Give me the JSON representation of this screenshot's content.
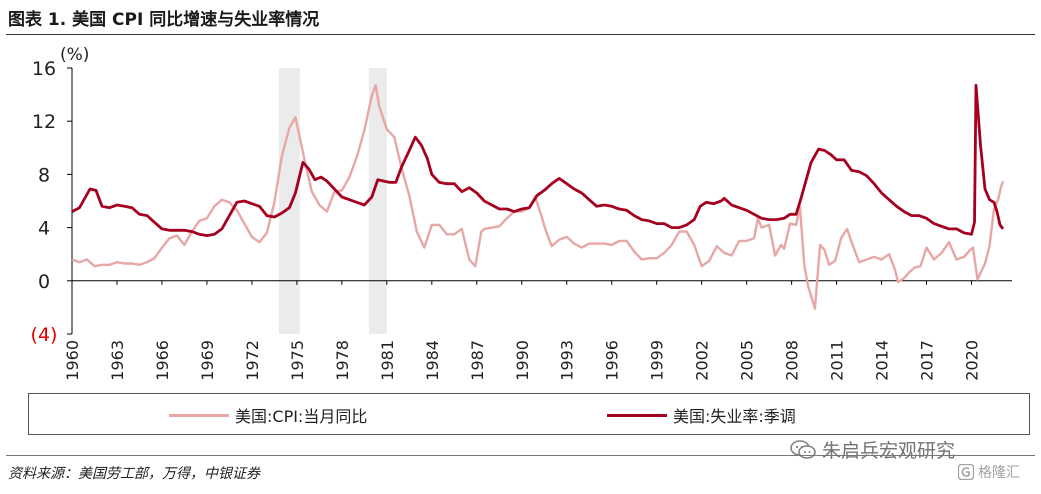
{
  "figure": {
    "title": "图表 1. 美国 CPI 同比增速与失业率情况",
    "source": "资料来源：美国劳工部，万得，中银证券"
  },
  "watermarks": {
    "account": "朱启兵宏观研究",
    "brand": "格隆汇"
  },
  "chart_data": {
    "type": "line",
    "y_unit_label": "(%)",
    "ylim": [
      -4,
      16
    ],
    "yticks": [
      16,
      12,
      8,
      4,
      0,
      -4
    ],
    "ytick_labels": [
      "16",
      "12",
      "8",
      "4",
      "0",
      "(4)"
    ],
    "negative_tick_color": "#e00000",
    "xlim": [
      1960,
      2022.7
    ],
    "xticks": [
      1960,
      1963,
      1966,
      1969,
      1972,
      1975,
      1978,
      1981,
      1984,
      1987,
      1990,
      1993,
      1996,
      1999,
      2002,
      2005,
      2008,
      2011,
      2014,
      2017,
      2020
    ],
    "xtick_labels": [
      "1960",
      "1963",
      "1966",
      "1969",
      "1972",
      "1975",
      "1978",
      "1981",
      "1984",
      "1987",
      "1990",
      "1993",
      "1996",
      "1999",
      "2002",
      "2005",
      "2008",
      "2011",
      "2014",
      "2017",
      "2020"
    ],
    "recession_shading": [
      [
        1973.8,
        1975.2
      ],
      [
        1979.8,
        1981.0
      ]
    ],
    "legend_position": "bottom",
    "series": [
      {
        "name": "美国:CPI:当月同比",
        "color": "#e8a7a7",
        "points": [
          [
            1960.0,
            1.6
          ],
          [
            1960.5,
            1.4
          ],
          [
            1961.0,
            1.6
          ],
          [
            1961.5,
            1.1
          ],
          [
            1962.0,
            1.2
          ],
          [
            1962.5,
            1.2
          ],
          [
            1963.0,
            1.4
          ],
          [
            1963.5,
            1.3
          ],
          [
            1964.0,
            1.3
          ],
          [
            1964.5,
            1.2
          ],
          [
            1965.0,
            1.4
          ],
          [
            1965.5,
            1.7
          ],
          [
            1966.0,
            2.5
          ],
          [
            1966.5,
            3.2
          ],
          [
            1967.0,
            3.4
          ],
          [
            1967.5,
            2.7
          ],
          [
            1968.0,
            3.7
          ],
          [
            1968.5,
            4.5
          ],
          [
            1969.0,
            4.7
          ],
          [
            1969.5,
            5.6
          ],
          [
            1970.0,
            6.1
          ],
          [
            1970.5,
            5.9
          ],
          [
            1971.0,
            5.3
          ],
          [
            1971.5,
            4.3
          ],
          [
            1972.0,
            3.3
          ],
          [
            1972.5,
            2.9
          ],
          [
            1973.0,
            3.6
          ],
          [
            1973.5,
            5.9
          ],
          [
            1974.0,
            9.4
          ],
          [
            1974.5,
            11.5
          ],
          [
            1974.9,
            12.3
          ],
          [
            1975.3,
            10.2
          ],
          [
            1975.6,
            8.6
          ],
          [
            1976.0,
            6.7
          ],
          [
            1976.5,
            5.7
          ],
          [
            1977.0,
            5.2
          ],
          [
            1977.5,
            6.7
          ],
          [
            1978.0,
            6.8
          ],
          [
            1978.5,
            7.8
          ],
          [
            1979.0,
            9.3
          ],
          [
            1979.5,
            11.3
          ],
          [
            1980.0,
            13.9
          ],
          [
            1980.25,
            14.7
          ],
          [
            1980.5,
            13.1
          ],
          [
            1981.0,
            11.4
          ],
          [
            1981.5,
            10.8
          ],
          [
            1982.0,
            8.4
          ],
          [
            1982.5,
            6.4
          ],
          [
            1983.0,
            3.7
          ],
          [
            1983.5,
            2.5
          ],
          [
            1984.0,
            4.2
          ],
          [
            1984.5,
            4.2
          ],
          [
            1985.0,
            3.5
          ],
          [
            1985.5,
            3.5
          ],
          [
            1986.0,
            3.9
          ],
          [
            1986.5,
            1.6
          ],
          [
            1986.9,
            1.1
          ],
          [
            1987.3,
            3.7
          ],
          [
            1987.5,
            3.9
          ],
          [
            1988.0,
            4.0
          ],
          [
            1988.5,
            4.1
          ],
          [
            1989.0,
            4.7
          ],
          [
            1989.5,
            5.2
          ],
          [
            1990.0,
            5.2
          ],
          [
            1990.5,
            5.5
          ],
          [
            1990.9,
            6.3
          ],
          [
            1991.3,
            4.9
          ],
          [
            1991.6,
            3.8
          ],
          [
            1992.0,
            2.6
          ],
          [
            1992.5,
            3.1
          ],
          [
            1993.0,
            3.3
          ],
          [
            1993.5,
            2.8
          ],
          [
            1994.0,
            2.5
          ],
          [
            1994.5,
            2.8
          ],
          [
            1995.0,
            2.8
          ],
          [
            1995.5,
            2.8
          ],
          [
            1996.0,
            2.7
          ],
          [
            1996.5,
            3.0
          ],
          [
            1997.0,
            3.0
          ],
          [
            1997.5,
            2.2
          ],
          [
            1998.0,
            1.6
          ],
          [
            1998.5,
            1.7
          ],
          [
            1999.0,
            1.7
          ],
          [
            1999.5,
            2.1
          ],
          [
            2000.0,
            2.7
          ],
          [
            2000.5,
            3.7
          ],
          [
            2001.0,
            3.7
          ],
          [
            2001.5,
            2.7
          ],
          [
            2002.0,
            1.1
          ],
          [
            2002.5,
            1.5
          ],
          [
            2003.0,
            2.6
          ],
          [
            2003.5,
            2.1
          ],
          [
            2004.0,
            1.9
          ],
          [
            2004.5,
            3.0
          ],
          [
            2005.0,
            3.0
          ],
          [
            2005.5,
            3.2
          ],
          [
            2005.75,
            4.7
          ],
          [
            2006.0,
            4.0
          ],
          [
            2006.5,
            4.2
          ],
          [
            2006.9,
            1.9
          ],
          [
            2007.3,
            2.7
          ],
          [
            2007.5,
            2.4
          ],
          [
            2007.9,
            4.3
          ],
          [
            2008.3,
            4.2
          ],
          [
            2008.55,
            5.6
          ],
          [
            2008.85,
            1.1
          ],
          [
            2009.1,
            -0.4
          ],
          [
            2009.55,
            -2.1
          ],
          [
            2009.9,
            2.7
          ],
          [
            2010.2,
            2.3
          ],
          [
            2010.5,
            1.2
          ],
          [
            2010.9,
            1.5
          ],
          [
            2011.3,
            3.2
          ],
          [
            2011.7,
            3.9
          ],
          [
            2012.0,
            2.9
          ],
          [
            2012.5,
            1.4
          ],
          [
            2013.0,
            1.6
          ],
          [
            2013.5,
            1.8
          ],
          [
            2014.0,
            1.6
          ],
          [
            2014.5,
            2.0
          ],
          [
            2014.9,
            0.8
          ],
          [
            2015.1,
            -0.1
          ],
          [
            2015.5,
            0.2
          ],
          [
            2015.9,
            0.7
          ],
          [
            2016.2,
            1.0
          ],
          [
            2016.6,
            1.1
          ],
          [
            2017.0,
            2.5
          ],
          [
            2017.5,
            1.6
          ],
          [
            2018.0,
            2.1
          ],
          [
            2018.5,
            2.9
          ],
          [
            2019.0,
            1.6
          ],
          [
            2019.5,
            1.8
          ],
          [
            2019.9,
            2.3
          ],
          [
            2020.1,
            2.5
          ],
          [
            2020.4,
            0.1
          ],
          [
            2020.9,
            1.3
          ],
          [
            2021.2,
            2.6
          ],
          [
            2021.5,
            5.4
          ],
          [
            2021.8,
            6.2
          ],
          [
            2021.95,
            7.0
          ],
          [
            2022.1,
            7.5
          ]
        ]
      },
      {
        "name": "美国:失业率:季调",
        "color": "#a5001f",
        "points": [
          [
            1960.0,
            5.2
          ],
          [
            1960.5,
            5.5
          ],
          [
            1960.9,
            6.3
          ],
          [
            1961.2,
            6.9
          ],
          [
            1961.6,
            6.8
          ],
          [
            1962.0,
            5.6
          ],
          [
            1962.5,
            5.5
          ],
          [
            1963.0,
            5.7
          ],
          [
            1963.5,
            5.6
          ],
          [
            1964.0,
            5.5
          ],
          [
            1964.5,
            5.0
          ],
          [
            1965.0,
            4.9
          ],
          [
            1965.5,
            4.4
          ],
          [
            1966.0,
            3.9
          ],
          [
            1966.5,
            3.8
          ],
          [
            1967.0,
            3.8
          ],
          [
            1967.5,
            3.8
          ],
          [
            1968.0,
            3.7
          ],
          [
            1968.5,
            3.5
          ],
          [
            1969.0,
            3.4
          ],
          [
            1969.5,
            3.5
          ],
          [
            1970.0,
            3.9
          ],
          [
            1970.5,
            4.9
          ],
          [
            1971.0,
            5.9
          ],
          [
            1971.5,
            6.0
          ],
          [
            1972.0,
            5.8
          ],
          [
            1972.5,
            5.6
          ],
          [
            1973.0,
            4.9
          ],
          [
            1973.5,
            4.8
          ],
          [
            1974.0,
            5.1
          ],
          [
            1974.5,
            5.5
          ],
          [
            1974.9,
            6.6
          ],
          [
            1975.4,
            8.9
          ],
          [
            1975.8,
            8.4
          ],
          [
            1976.2,
            7.6
          ],
          [
            1976.6,
            7.8
          ],
          [
            1977.0,
            7.5
          ],
          [
            1977.5,
            6.9
          ],
          [
            1978.0,
            6.3
          ],
          [
            1978.5,
            6.1
          ],
          [
            1979.0,
            5.9
          ],
          [
            1979.5,
            5.7
          ],
          [
            1980.0,
            6.3
          ],
          [
            1980.4,
            7.6
          ],
          [
            1980.8,
            7.5
          ],
          [
            1981.2,
            7.4
          ],
          [
            1981.6,
            7.4
          ],
          [
            1982.0,
            8.6
          ],
          [
            1982.5,
            9.8
          ],
          [
            1982.9,
            10.8
          ],
          [
            1983.3,
            10.2
          ],
          [
            1983.7,
            9.2
          ],
          [
            1984.0,
            8.0
          ],
          [
            1984.5,
            7.4
          ],
          [
            1985.0,
            7.3
          ],
          [
            1985.5,
            7.3
          ],
          [
            1986.0,
            6.7
          ],
          [
            1986.5,
            7.0
          ],
          [
            1987.0,
            6.6
          ],
          [
            1987.5,
            6.0
          ],
          [
            1988.0,
            5.7
          ],
          [
            1988.5,
            5.4
          ],
          [
            1989.0,
            5.4
          ],
          [
            1989.5,
            5.2
          ],
          [
            1990.0,
            5.4
          ],
          [
            1990.5,
            5.5
          ],
          [
            1991.0,
            6.4
          ],
          [
            1991.5,
            6.8
          ],
          [
            1992.0,
            7.3
          ],
          [
            1992.5,
            7.7
          ],
          [
            1993.0,
            7.3
          ],
          [
            1993.5,
            6.9
          ],
          [
            1994.0,
            6.6
          ],
          [
            1994.5,
            6.1
          ],
          [
            1995.0,
            5.6
          ],
          [
            1995.5,
            5.7
          ],
          [
            1996.0,
            5.6
          ],
          [
            1996.5,
            5.4
          ],
          [
            1997.0,
            5.3
          ],
          [
            1997.5,
            4.9
          ],
          [
            1998.0,
            4.6
          ],
          [
            1998.5,
            4.5
          ],
          [
            1999.0,
            4.3
          ],
          [
            1999.5,
            4.3
          ],
          [
            2000.0,
            4.0
          ],
          [
            2000.5,
            4.0
          ],
          [
            2001.0,
            4.2
          ],
          [
            2001.5,
            4.6
          ],
          [
            2001.9,
            5.6
          ],
          [
            2002.3,
            5.9
          ],
          [
            2002.8,
            5.8
          ],
          [
            2003.3,
            6.0
          ],
          [
            2003.5,
            6.2
          ],
          [
            2004.0,
            5.7
          ],
          [
            2004.5,
            5.5
          ],
          [
            2005.0,
            5.3
          ],
          [
            2005.5,
            5.0
          ],
          [
            2006.0,
            4.7
          ],
          [
            2006.5,
            4.6
          ],
          [
            2007.0,
            4.6
          ],
          [
            2007.5,
            4.7
          ],
          [
            2007.9,
            5.0
          ],
          [
            2008.3,
            5.0
          ],
          [
            2008.6,
            6.1
          ],
          [
            2008.9,
            7.3
          ],
          [
            2009.3,
            8.9
          ],
          [
            2009.8,
            9.9
          ],
          [
            2010.2,
            9.8
          ],
          [
            2010.6,
            9.5
          ],
          [
            2011.0,
            9.1
          ],
          [
            2011.5,
            9.1
          ],
          [
            2012.0,
            8.3
          ],
          [
            2012.5,
            8.2
          ],
          [
            2013.0,
            7.9
          ],
          [
            2013.5,
            7.3
          ],
          [
            2014.0,
            6.6
          ],
          [
            2014.5,
            6.1
          ],
          [
            2015.0,
            5.6
          ],
          [
            2015.5,
            5.2
          ],
          [
            2016.0,
            4.9
          ],
          [
            2016.5,
            4.9
          ],
          [
            2017.0,
            4.7
          ],
          [
            2017.5,
            4.3
          ],
          [
            2018.0,
            4.1
          ],
          [
            2018.5,
            3.9
          ],
          [
            2019.0,
            3.9
          ],
          [
            2019.5,
            3.6
          ],
          [
            2020.0,
            3.5
          ],
          [
            2020.2,
            4.4
          ],
          [
            2020.3,
            14.7
          ],
          [
            2020.4,
            13.2
          ],
          [
            2020.6,
            10.2
          ],
          [
            2020.9,
            6.9
          ],
          [
            2021.2,
            6.1
          ],
          [
            2021.5,
            5.9
          ],
          [
            2021.7,
            5.2
          ],
          [
            2021.9,
            4.2
          ],
          [
            2022.1,
            3.9
          ]
        ]
      }
    ]
  }
}
